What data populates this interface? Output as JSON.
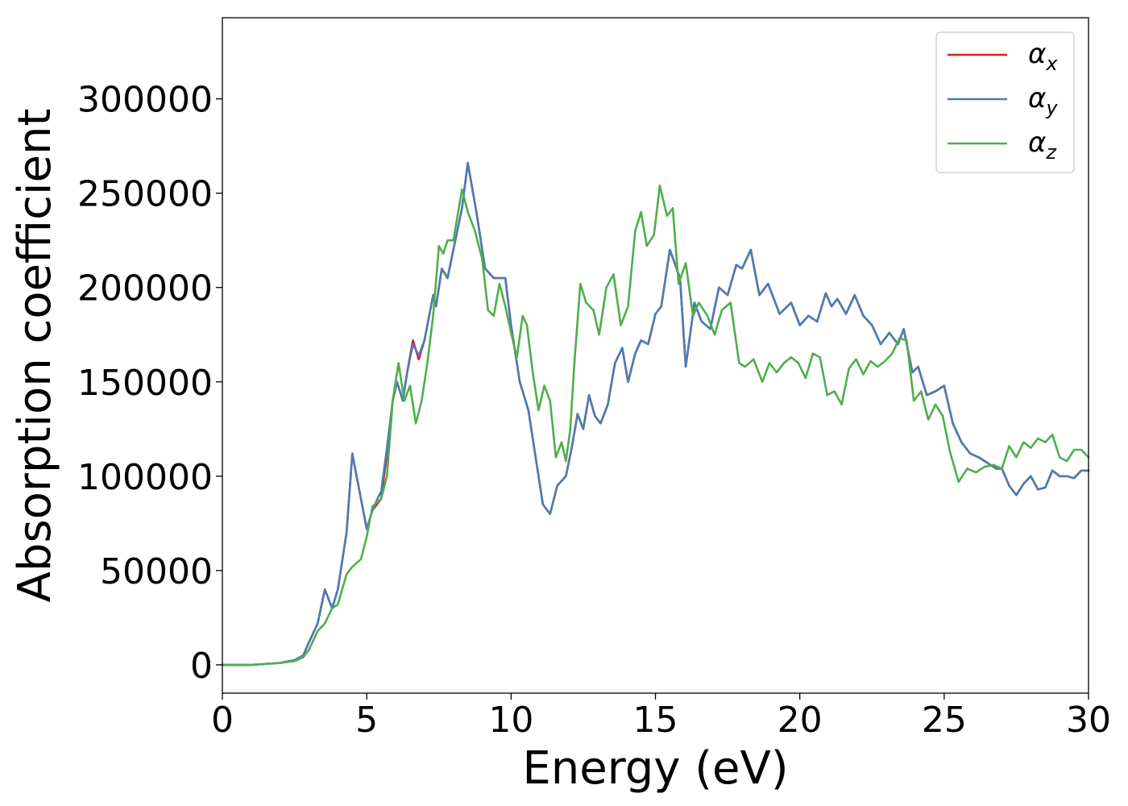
{
  "chart_data": {
    "type": "line",
    "title": "",
    "xlabel": "Energy (eV)",
    "ylabel": "Absorption coefficient",
    "xlim": [
      0,
      30
    ],
    "ylim": [
      -15000,
      343000
    ],
    "grid": false,
    "legend_position": "top-right",
    "x_ticks": [
      0,
      5,
      10,
      15,
      20,
      25,
      30
    ],
    "x_tick_labels": [
      "0",
      "5",
      "10",
      "15",
      "20",
      "25",
      "30"
    ],
    "y_ticks": [
      0,
      50000,
      100000,
      150000,
      200000,
      250000,
      300000
    ],
    "y_tick_labels": [
      "0",
      "50000",
      "100000",
      "150000",
      "200000",
      "250000",
      "300000"
    ],
    "series": [
      {
        "name": "α",
        "subscript": "x",
        "color": "#e41a1c",
        "x": [
          0,
          1,
          2,
          2.5,
          2.8,
          3.0,
          3.3,
          3.55,
          3.8,
          4.0,
          4.3,
          4.5,
          4.65,
          4.8,
          5.0,
          5.2,
          5.4,
          5.5,
          5.7,
          5.9,
          6.05,
          6.25,
          6.4,
          6.6,
          6.8,
          7.0,
          7.3,
          7.4,
          7.6,
          7.8,
          8.0,
          8.3,
          8.5,
          8.8,
          9.1,
          9.4,
          9.8,
          10.0,
          10.3,
          10.6,
          10.9,
          11.1,
          11.35,
          11.6,
          11.9,
          12.1,
          12.3,
          12.5,
          12.7,
          12.9,
          13.1,
          13.35,
          13.6,
          13.85,
          14.05,
          14.3,
          14.5,
          14.75,
          15.0,
          15.2,
          15.5,
          15.85,
          16.05,
          16.35,
          16.6,
          16.9,
          17.2,
          17.5,
          17.8,
          18.0,
          18.3,
          18.6,
          18.9,
          19.3,
          19.7,
          20.0,
          20.3,
          20.6,
          20.9,
          21.1,
          21.3,
          21.6,
          21.9,
          22.2,
          22.5,
          22.8,
          23.1,
          23.4,
          23.6,
          23.9,
          24.1,
          24.4,
          24.7,
          25.0,
          25.3,
          25.6,
          25.9,
          26.2,
          26.5,
          26.8,
          27.0,
          27.25,
          27.5,
          27.75,
          28.0,
          28.25,
          28.5,
          28.75,
          29.0,
          29.25,
          29.5,
          29.75,
          30.0
        ],
        "y": [
          0,
          0,
          1000,
          2500,
          5000,
          12000,
          22000,
          40000,
          30000,
          40000,
          70000,
          112000,
          100000,
          88000,
          72000,
          82000,
          86000,
          88000,
          112000,
          140000,
          150000,
          140000,
          155000,
          172000,
          162000,
          172000,
          196000,
          190000,
          210000,
          205000,
          220000,
          242000,
          266000,
          240000,
          210000,
          205000,
          205000,
          180000,
          150000,
          135000,
          105000,
          85000,
          80000,
          95000,
          100000,
          115000,
          133000,
          125000,
          143000,
          132000,
          128000,
          138000,
          160000,
          168000,
          150000,
          165000,
          172000,
          170000,
          186000,
          190000,
          220000,
          205000,
          158000,
          192000,
          182000,
          178000,
          200000,
          196000,
          212000,
          210000,
          220000,
          196000,
          202000,
          186000,
          192000,
          180000,
          185000,
          182000,
          197000,
          190000,
          194000,
          186000,
          196000,
          185000,
          180000,
          170000,
          176000,
          170000,
          178000,
          155000,
          158000,
          143000,
          145000,
          148000,
          128000,
          118000,
          112000,
          110000,
          107000,
          104000,
          104000,
          95000,
          90000,
          96000,
          100000,
          93000,
          94000,
          103000,
          100000,
          100000,
          99000,
          103000,
          103000
        ]
      },
      {
        "name": "α",
        "subscript": "y",
        "color": "#4a7db5",
        "x": [
          0,
          1,
          2,
          2.5,
          2.8,
          3.0,
          3.3,
          3.55,
          3.8,
          4.0,
          4.3,
          4.5,
          4.65,
          4.8,
          5.0,
          5.2,
          5.4,
          5.5,
          5.7,
          5.9,
          6.05,
          6.25,
          6.4,
          6.6,
          6.8,
          7.0,
          7.3,
          7.4,
          7.6,
          7.8,
          8.0,
          8.3,
          8.5,
          8.8,
          9.1,
          9.4,
          9.8,
          10.0,
          10.3,
          10.6,
          10.9,
          11.1,
          11.35,
          11.6,
          11.9,
          12.1,
          12.3,
          12.5,
          12.7,
          12.9,
          13.1,
          13.35,
          13.6,
          13.85,
          14.05,
          14.3,
          14.5,
          14.75,
          15.0,
          15.2,
          15.5,
          15.85,
          16.05,
          16.35,
          16.6,
          16.9,
          17.2,
          17.5,
          17.8,
          18.0,
          18.3,
          18.6,
          18.9,
          19.3,
          19.7,
          20.0,
          20.3,
          20.6,
          20.9,
          21.1,
          21.3,
          21.6,
          21.9,
          22.2,
          22.5,
          22.8,
          23.1,
          23.4,
          23.6,
          23.9,
          24.1,
          24.4,
          24.7,
          25.0,
          25.3,
          25.6,
          25.9,
          26.2,
          26.5,
          26.8,
          27.0,
          27.25,
          27.5,
          27.75,
          28.0,
          28.25,
          28.5,
          28.75,
          29.0,
          29.25,
          29.5,
          29.75,
          30.0
        ],
        "y": [
          0,
          0,
          1000,
          2500,
          5000,
          12000,
          22000,
          40000,
          30000,
          40000,
          70000,
          112000,
          100000,
          88000,
          72000,
          82000,
          89000,
          92000,
          115000,
          140000,
          150000,
          140000,
          155000,
          170000,
          164000,
          172000,
          196000,
          190000,
          210000,
          205000,
          220000,
          242000,
          266000,
          240000,
          210000,
          205000,
          205000,
          180000,
          150000,
          135000,
          105000,
          85000,
          80000,
          95000,
          100000,
          115000,
          133000,
          125000,
          143000,
          132000,
          128000,
          138000,
          160000,
          168000,
          150000,
          165000,
          172000,
          170000,
          186000,
          190000,
          220000,
          205000,
          158000,
          192000,
          182000,
          178000,
          200000,
          196000,
          212000,
          210000,
          220000,
          196000,
          202000,
          186000,
          192000,
          180000,
          185000,
          182000,
          197000,
          190000,
          194000,
          186000,
          196000,
          185000,
          180000,
          170000,
          176000,
          170000,
          178000,
          155000,
          158000,
          143000,
          145000,
          148000,
          128000,
          118000,
          112000,
          110000,
          107000,
          104000,
          104000,
          95000,
          90000,
          96000,
          100000,
          93000,
          94000,
          103000,
          100000,
          100000,
          99000,
          103000,
          103000
        ]
      },
      {
        "name": "α",
        "subscript": "z",
        "color": "#4daf4a",
        "x": [
          0,
          1,
          2,
          2.5,
          2.8,
          3.0,
          3.3,
          3.55,
          3.8,
          4.0,
          4.3,
          4.5,
          4.8,
          5.0,
          5.2,
          5.5,
          5.7,
          5.9,
          6.1,
          6.3,
          6.5,
          6.7,
          6.9,
          7.1,
          7.3,
          7.5,
          7.65,
          7.8,
          8.0,
          8.3,
          8.5,
          8.75,
          9.0,
          9.2,
          9.4,
          9.6,
          9.8,
          10.0,
          10.2,
          10.4,
          10.55,
          10.75,
          10.95,
          11.15,
          11.35,
          11.55,
          11.75,
          11.9,
          12.05,
          12.2,
          12.4,
          12.6,
          12.85,
          13.05,
          13.3,
          13.55,
          13.8,
          14.05,
          14.3,
          14.5,
          14.7,
          14.95,
          15.15,
          15.4,
          15.6,
          15.8,
          16.05,
          16.3,
          16.5,
          16.8,
          17.05,
          17.3,
          17.6,
          17.9,
          18.1,
          18.4,
          18.7,
          18.95,
          19.2,
          19.45,
          19.7,
          19.95,
          20.2,
          20.45,
          20.7,
          20.95,
          21.2,
          21.45,
          21.7,
          21.95,
          22.2,
          22.45,
          22.7,
          22.95,
          23.2,
          23.45,
          23.7,
          23.95,
          24.2,
          24.45,
          24.7,
          24.95,
          25.2,
          25.5,
          25.8,
          26.1,
          26.4,
          26.7,
          27.0,
          27.25,
          27.5,
          27.75,
          28.0,
          28.25,
          28.5,
          28.75,
          29.0,
          29.25,
          29.5,
          29.75,
          30.0
        ],
        "y": [
          0,
          0,
          1000,
          2000,
          4000,
          8000,
          18000,
          22000,
          30000,
          32000,
          48000,
          52000,
          56000,
          68000,
          84000,
          88000,
          100000,
          140000,
          160000,
          140000,
          148000,
          128000,
          140000,
          160000,
          185000,
          222000,
          218000,
          225000,
          225000,
          252000,
          240000,
          230000,
          215000,
          188000,
          185000,
          202000,
          190000,
          176000,
          163000,
          185000,
          180000,
          155000,
          135000,
          148000,
          140000,
          110000,
          118000,
          108000,
          125000,
          162000,
          202000,
          192000,
          188000,
          175000,
          200000,
          207000,
          180000,
          190000,
          230000,
          240000,
          222000,
          228000,
          254000,
          238000,
          242000,
          202000,
          213000,
          185000,
          192000,
          185000,
          175000,
          188000,
          192000,
          160000,
          158000,
          162000,
          150000,
          160000,
          155000,
          160000,
          163000,
          160000,
          152000,
          165000,
          163000,
          143000,
          145000,
          138000,
          157000,
          162000,
          154000,
          161000,
          158000,
          161000,
          165000,
          173000,
          172000,
          140000,
          145000,
          130000,
          138000,
          132000,
          113000,
          97000,
          104000,
          102000,
          105000,
          106000,
          104000,
          116000,
          110000,
          118000,
          115000,
          120000,
          118000,
          122000,
          110000,
          108000,
          114000,
          114000,
          110000
        ]
      }
    ]
  }
}
